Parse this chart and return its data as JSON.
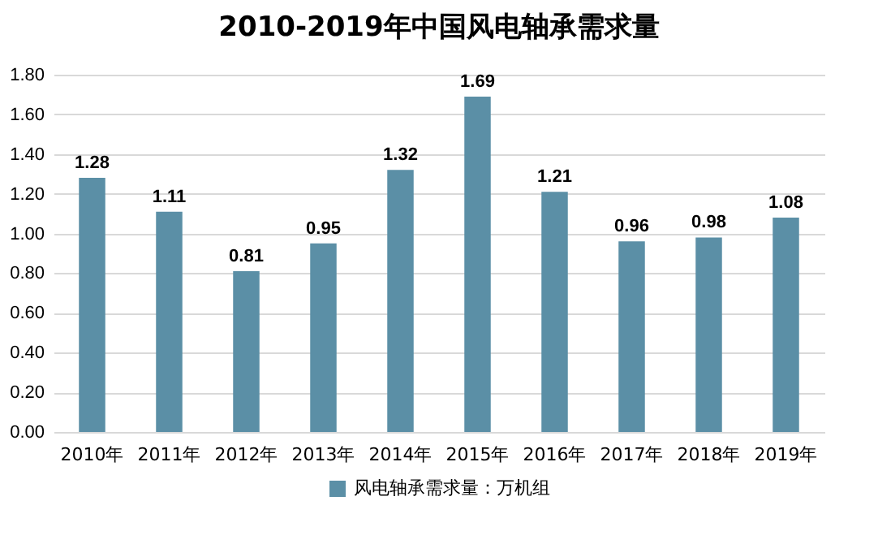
{
  "chart_data": {
    "type": "bar",
    "title": "2010-2019年中国风电轴承需求量",
    "categories": [
      "2010年",
      "2011年",
      "2012年",
      "2013年",
      "2014年",
      "2015年",
      "2016年",
      "2017年",
      "2018年",
      "2019年"
    ],
    "series": [
      {
        "name": "风电轴承需求量：万机组",
        "color": "#5b8fa6",
        "values": [
          1.28,
          1.11,
          0.81,
          0.95,
          1.32,
          1.69,
          1.21,
          0.96,
          0.98,
          1.08
        ]
      }
    ],
    "ylim": [
      0,
      1.8
    ],
    "yticks": [
      {
        "value": 0,
        "label": "0.00"
      },
      {
        "value": 0.2,
        "label": "0.20"
      },
      {
        "value": 0.4,
        "label": "0.40"
      },
      {
        "value": 0.6,
        "label": "0.60"
      },
      {
        "value": 0.8,
        "label": "0.80"
      },
      {
        "value": 1,
        "label": "1.00"
      },
      {
        "value": 1.2,
        "label": "1.20"
      },
      {
        "value": 1.4,
        "label": "1.40"
      },
      {
        "value": 1.6,
        "label": "1.60"
      },
      {
        "value": 1.8,
        "label": "1.80"
      }
    ],
    "grid": "y",
    "data_labels": true,
    "legend": "bottom"
  }
}
